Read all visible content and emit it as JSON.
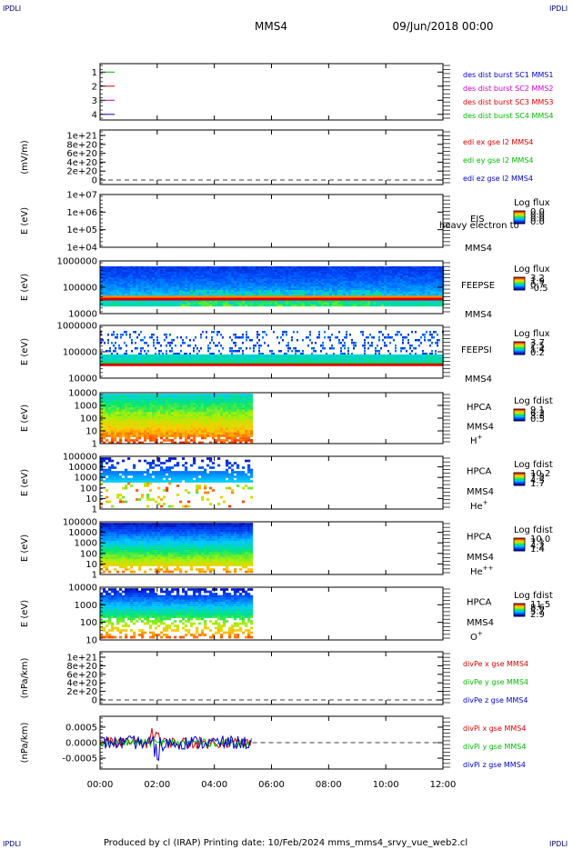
{
  "corner_left": "IPDLI",
  "corner_right": "IPDLI",
  "title": "MMS4",
  "datetime": "09/Jun/2018 00:00",
  "footer": "Produced by cl (IRAP)    Printing date: 10/Feb/2024   mms_mms4_srvy_vue_web2.cl",
  "colors": {
    "red": "#dd0000",
    "green": "#00bb00",
    "blue": "#0000cc",
    "magenta": "#cc00cc",
    "black": "#000000"
  },
  "chart_data": [
    {
      "type": "line",
      "id": "panel1",
      "ylabel": "",
      "yticks": [
        "1",
        "2",
        "3",
        "4"
      ],
      "series": [
        {
          "name": "des dist burst SC1 MMS1",
          "color": "#00bb00",
          "y": 4
        },
        {
          "name": "des dist burst SC2 MMS2",
          "color": "#dd0000",
          "y": 3
        },
        {
          "name": "des dist burst SC3 MMS3",
          "color": "#cc00cc",
          "y": 2
        },
        {
          "name": "des dist burst SC4 MMS4",
          "color": "#0000cc",
          "y": 1
        }
      ],
      "legend_colors": [
        "#0000cc",
        "#cc00cc",
        "#dd0000",
        "#00bb00"
      ]
    },
    {
      "type": "line",
      "id": "panel2",
      "ylabel": "(mV/m)",
      "yticks": [
        "1e+21",
        "8e+20",
        "6e+20",
        "4e+20",
        "2e+20",
        "0"
      ],
      "series": [
        {
          "name": "edi ex gse l2 MMS4",
          "color": "#dd0000"
        },
        {
          "name": "edi ey gse l2 MMS4",
          "color": "#00bb00"
        },
        {
          "name": "edi ez gse l2 MMS4",
          "color": "#0000cc"
        }
      ]
    },
    {
      "type": "heatmap",
      "id": "panel3",
      "ylabel": "E (eV)",
      "yticks": [
        "1e+07",
        "1e+06",
        "1e+05",
        "1e+04"
      ],
      "instrument": "EIS",
      "spacecraft": "MMS4",
      "overlay": "heavy electron to",
      "cbar_title": "Log flux",
      "cbar_ticks": [
        "0.0",
        "0.0",
        "0.0",
        "0.0"
      ]
    },
    {
      "type": "heatmap",
      "id": "panel4",
      "ylabel": "E (eV)",
      "yticks": [
        "1000000",
        "100000",
        "10000"
      ],
      "instrument": "FEEPSE",
      "spacecraft": "MMS4",
      "cbar_title": "Log flux",
      "cbar_ticks": [
        "3.2",
        "1.9",
        "0.7",
        "-0.5"
      ],
      "x_range": [
        "00:00",
        "12:00"
      ]
    },
    {
      "type": "heatmap",
      "id": "panel5",
      "ylabel": "E (eV)",
      "yticks": [
        "1000000",
        "100000",
        "10000"
      ],
      "instrument": "FEEPSI",
      "spacecraft": "MMS4",
      "cbar_title": "Log flux",
      "cbar_ticks": [
        "3.7",
        "2.5",
        "1.4",
        "0.2"
      ],
      "x_range": [
        "00:00",
        "12:00"
      ]
    },
    {
      "type": "heatmap",
      "id": "panel6",
      "ylabel": "E (eV)",
      "yticks": [
        "10000",
        "1000",
        "100",
        "10",
        "1"
      ],
      "instrument": "HPCA",
      "spacecraft": "MMS4",
      "species": "H",
      "species_sup": "+",
      "cbar_title": "Log fdist",
      "cbar_ticks": [
        "9.1",
        "6.2",
        "3.3",
        "0.5"
      ],
      "x_range": [
        "00:00",
        "05:20"
      ]
    },
    {
      "type": "heatmap",
      "id": "panel7",
      "ylabel": "E (eV)",
      "yticks": [
        "100000",
        "10000",
        "1000",
        "100",
        "10",
        "1"
      ],
      "instrument": "HPCA",
      "spacecraft": "MMS4",
      "species": "He",
      "species_sup": "+",
      "cbar_title": "Log fdist",
      "cbar_ticks": [
        "10.2",
        "7.3",
        "4.5",
        "1.7"
      ],
      "x_range": [
        "00:00",
        "05:20"
      ]
    },
    {
      "type": "heatmap",
      "id": "panel8",
      "ylabel": "E (eV)",
      "yticks": [
        "100000",
        "10000",
        "1000",
        "100",
        "10",
        "1"
      ],
      "instrument": "HPCA",
      "spacecraft": "MMS4",
      "species": "He",
      "species_sup": "++",
      "cbar_title": "Log fdist",
      "cbar_ticks": [
        "10.0",
        "7.1",
        "4.2",
        "1.4"
      ],
      "x_range": [
        "00:00",
        "05:20"
      ]
    },
    {
      "type": "heatmap",
      "id": "panel9",
      "ylabel": "E (eV)",
      "yticks": [
        "10000",
        "1000",
        "100",
        "10"
      ],
      "instrument": "HPCA",
      "spacecraft": "MMS4",
      "species": "O",
      "species_sup": "+",
      "cbar_title": "Log fdist",
      "cbar_ticks": [
        "11.5",
        "8.6",
        "5.7",
        "2.9"
      ],
      "x_range": [
        "00:00",
        "05:20"
      ]
    },
    {
      "type": "line",
      "id": "panel10",
      "ylabel": "(nPa/km)",
      "yticks": [
        "1e+21",
        "8e+20",
        "6e+20",
        "4e+20",
        "2e+20",
        "0"
      ],
      "series": [
        {
          "name": "divPe x gse MMS4",
          "color": "#dd0000"
        },
        {
          "name": "divPe y gse MMS4",
          "color": "#00bb00"
        },
        {
          "name": "divPe z gse MMS4",
          "color": "#0000cc"
        }
      ]
    },
    {
      "type": "line",
      "id": "panel11",
      "ylabel": "(nPa/km)",
      "yticks": [
        "0.0005",
        "0.0000",
        "-0.0005"
      ],
      "ylim": [
        -0.00085,
        0.00085
      ],
      "x_range": [
        "00:00",
        "05:20"
      ],
      "series": [
        {
          "name": "divPi x gse MMS4",
          "color": "#dd0000"
        },
        {
          "name": "divPi y gse MMS4",
          "color": "#00bb00"
        },
        {
          "name": "divPi z gse MMS4",
          "color": "#0000cc"
        }
      ]
    }
  ],
  "xaxis": {
    "ticks": [
      "00:00",
      "02:00",
      "04:00",
      "06:00",
      "08:00",
      "10:00",
      "12:00"
    ],
    "range": [
      "00:00",
      "12:00"
    ]
  }
}
